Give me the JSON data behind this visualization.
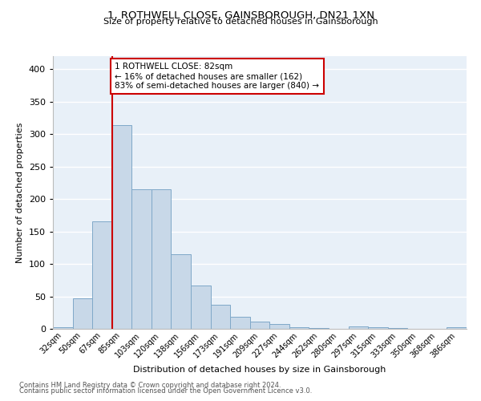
{
  "title": "1, ROTHWELL CLOSE, GAINSBOROUGH, DN21 1XN",
  "subtitle": "Size of property relative to detached houses in Gainsborough",
  "xlabel": "Distribution of detached houses by size in Gainsborough",
  "ylabel": "Number of detached properties",
  "bar_labels": [
    "32sqm",
    "50sqm",
    "67sqm",
    "85sqm",
    "103sqm",
    "120sqm",
    "138sqm",
    "156sqm",
    "173sqm",
    "191sqm",
    "209sqm",
    "227sqm",
    "244sqm",
    "262sqm",
    "280sqm",
    "297sqm",
    "315sqm",
    "333sqm",
    "350sqm",
    "368sqm",
    "386sqm"
  ],
  "bar_values": [
    3,
    47,
    165,
    314,
    215,
    215,
    115,
    67,
    37,
    18,
    11,
    8,
    3,
    1,
    0,
    4,
    2,
    1,
    0,
    0,
    3
  ],
  "bar_color": "#c8d8e8",
  "bar_edge_color": "#7fa8c8",
  "vline_pos": 2.5,
  "vline_color": "#cc0000",
  "annotation_text": "1 ROTHWELL CLOSE: 82sqm\n← 16% of detached houses are smaller (162)\n83% of semi-detached houses are larger (840) →",
  "annotation_box_color": "#ffffff",
  "annotation_box_edge": "#cc0000",
  "ylim": [
    0,
    420
  ],
  "yticks": [
    0,
    50,
    100,
    150,
    200,
    250,
    300,
    350,
    400
  ],
  "background_color": "#e8f0f8",
  "grid_color": "#ffffff",
  "footer_line1": "Contains HM Land Registry data © Crown copyright and database right 2024.",
  "footer_line2": "Contains public sector information licensed under the Open Government Licence v3.0."
}
